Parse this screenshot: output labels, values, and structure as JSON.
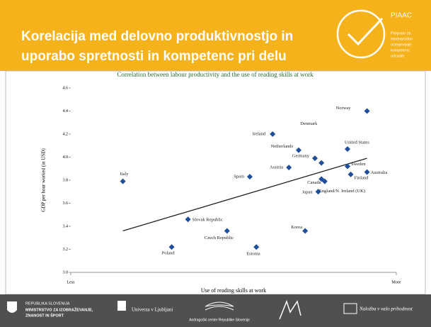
{
  "header": {
    "title_lines": [
      "Korelacija med delovno produktivnostjo in",
      "uporabo spretnosti in kompetenc pri delu"
    ],
    "logo": "PIAAC",
    "logo_caption": [
      "Program za",
      "mednarodno",
      "ocenjevanje",
      "kompetenc",
      "odraslih"
    ]
  },
  "chart_data": {
    "type": "scatter",
    "title": "Correlation between labour productivity and the use of reading skills at work",
    "x_label": "Use of reading skills at work",
    "y_label": "GDP per hour worked (in USD)",
    "color": "#1f4e9a",
    "names": [
      "Norway",
      "Ireland",
      "Netherlands",
      "United States",
      "Denmark",
      "Germany",
      "Austria",
      "Spain",
      "Sweden",
      "Australia",
      "Finland",
      "Canada",
      "England/N. Ireland (UK)",
      "Japan",
      "Italy",
      "Slovak Republic",
      "Czech Republic",
      "Korea",
      "Poland",
      "Estonia"
    ],
    "x": [
      0.91,
      0.62,
      0.7,
      0.85,
      0.77,
      0.75,
      0.67,
      0.55,
      0.85,
      0.91,
      0.86,
      0.77,
      0.78,
      0.76,
      0.16,
      0.36,
      0.48,
      0.72,
      0.31,
      0.57
    ],
    "values": [
      4.4,
      4.2,
      4.06,
      4.07,
      3.95,
      3.99,
      3.91,
      3.83,
      3.92,
      3.87,
      3.85,
      3.81,
      3.79,
      3.7,
      3.79,
      3.46,
      3.36,
      3.36,
      3.22,
      3.22
    ],
    "trendline": {
      "x": [
        0.16,
        0.91
      ],
      "y": [
        3.36,
        3.99
      ]
    },
    "xlim": [
      0,
      1
    ],
    "xticks": [
      {
        "value": 0,
        "label": "Less"
      },
      {
        "value": 1,
        "label": "More"
      }
    ],
    "ylim": [
      3.0,
      4.6
    ],
    "yticks": [
      {
        "value": 3.0,
        "label": "3.0"
      },
      3.2,
      3.4,
      3.6,
      3.8,
      {
        "value": 4.0,
        "label": "4.0"
      },
      4.2,
      4.4,
      4.6
    ],
    "grid": false
  },
  "footer": {
    "ministry": [
      "REPUBLIKA SLOVENIJA",
      "MINISTRSTVO ZA IZOBRAŽEVANJE,",
      "ZNANOST IN ŠPORT"
    ],
    "university": "Univerza v Ljubljani",
    "acs": "Andragoški center Republike Slovenije",
    "eu": "Naložba v vašo prihodnost"
  }
}
